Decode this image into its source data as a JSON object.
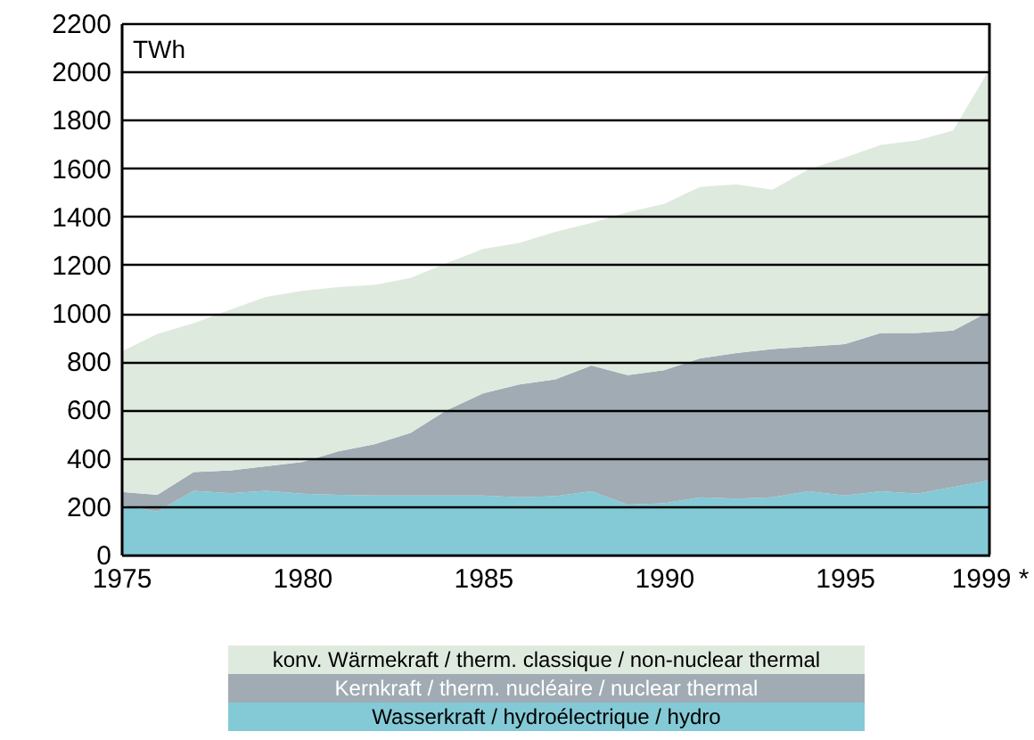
{
  "chart_data": {
    "type": "area",
    "stacked": true,
    "ylabel": "TWh",
    "x": [
      1975,
      1976,
      1977,
      1978,
      1979,
      1980,
      1981,
      1982,
      1983,
      1984,
      1985,
      1986,
      1987,
      1988,
      1989,
      1990,
      1991,
      1992,
      1993,
      1994,
      1995,
      1996,
      1997,
      1998,
      1999
    ],
    "series": [
      {
        "name": "Wasserkraft / hydroélectrique / hydro",
        "color": "#84c9d6",
        "values": [
          205,
          178,
          264,
          254,
          264,
          252,
          247,
          245,
          245,
          245,
          245,
          237,
          242,
          262,
          207,
          212,
          237,
          232,
          237,
          262,
          245,
          262,
          252,
          280,
          307
        ]
      },
      {
        "name": "Kernkraft / therm. nucléaire / nuclear thermal",
        "color": "#a0abb4",
        "values": [
          54,
          69,
          77,
          94,
          101,
          131,
          180,
          212,
          259,
          353,
          422,
          467,
          483,
          521,
          536,
          551,
          575,
          602,
          614,
          599,
          626,
          655,
          665,
          647,
          700
        ]
      },
      {
        "name": "konv. Wärmekraft / therm. classique / non-nuclear thermal",
        "color": "#dfeadf",
        "values": [
          581,
          667,
          617,
          665,
          702,
          709,
          680,
          660,
          641,
          609,
          598,
          586,
          611,
          590,
          674,
          689,
          710,
          699,
          660,
          734,
          773,
          779,
          798,
          829,
          1003
        ]
      }
    ],
    "xlim": [
      1975,
      1999
    ],
    "xticks": [
      1975,
      1980,
      1985,
      1990,
      1995,
      {
        "value": 1999,
        "label": "1999 *"
      }
    ],
    "ylim": [
      0,
      2200
    ],
    "yticks": [
      0,
      200,
      400,
      600,
      800,
      1000,
      1200,
      1400,
      1600,
      1800,
      2000,
      2200
    ],
    "grid": "y",
    "legend": "bottom"
  }
}
